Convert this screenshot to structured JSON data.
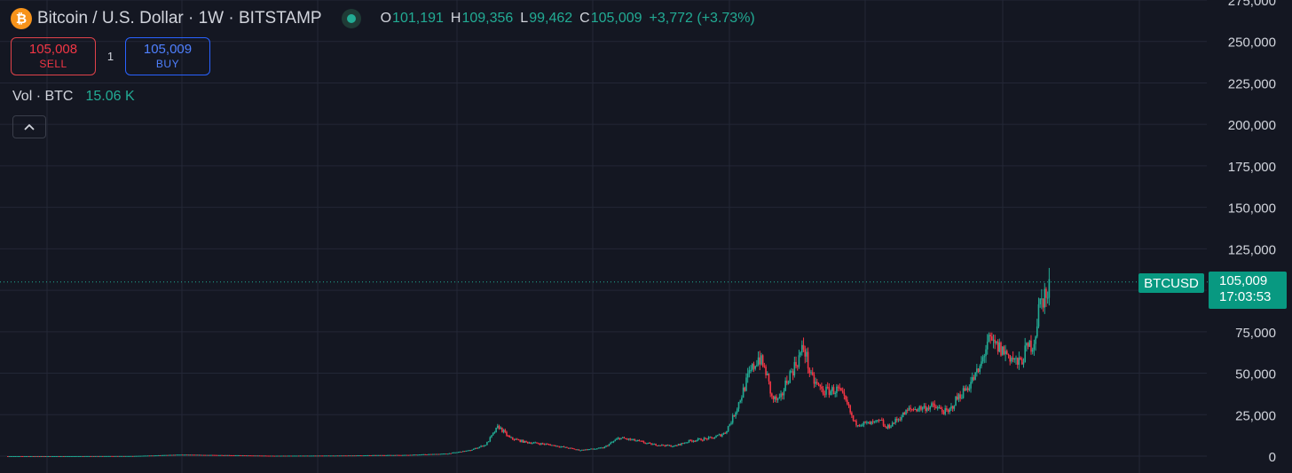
{
  "header": {
    "coin_glyph": "₿",
    "title": "Bitcoin / U.S. Dollar · 1W · BITSTAMP",
    "ohlc": [
      {
        "key": "O",
        "value": "101,191"
      },
      {
        "key": "H",
        "value": "109,356"
      },
      {
        "key": "L",
        "value": "99,462"
      },
      {
        "key": "C",
        "value": "105,009"
      }
    ],
    "change": "+3,772 (+3.73%)"
  },
  "trade": {
    "sell_price": "105,008",
    "sell_label": "SELL",
    "quantity": "1",
    "buy_price": "105,009",
    "buy_label": "BUY"
  },
  "volume": {
    "label": "Vol · BTC",
    "value": "15.06 K"
  },
  "price_tags": {
    "symbol": "BTCUSD",
    "last_price": "105,009",
    "countdown": "17:03:53"
  },
  "colors": {
    "background": "#141722",
    "grid": "#232736",
    "up": "#22ab94",
    "down": "#f23645",
    "accent_buy": "#2962ff",
    "bitcoin": "#f7931a"
  },
  "chart_data": {
    "type": "candlestick",
    "symbol": "BTCUSD",
    "interval": "1W",
    "ylim": [
      0,
      275000
    ],
    "y_ticks": [
      0,
      25000,
      50000,
      75000,
      100000,
      125000,
      150000,
      175000,
      200000,
      225000,
      250000,
      275000
    ],
    "y_tick_labels": [
      "0",
      "25,000",
      "50,000",
      "75,000",
      "",
      "125,000",
      "150,000",
      "175,000",
      "200,000",
      "225,000",
      "250,000",
      "275,000"
    ],
    "grid": true,
    "last_price": 105009,
    "x_range": [
      2011.6,
      2027.0
    ],
    "close_path": [
      [
        2011.7,
        5
      ],
      [
        2012.5,
        10
      ],
      [
        2013.3,
        100
      ],
      [
        2013.9,
        900
      ],
      [
        2014.5,
        600
      ],
      [
        2015.1,
        250
      ],
      [
        2016.0,
        400
      ],
      [
        2016.8,
        750
      ],
      [
        2017.3,
        1500
      ],
      [
        2017.6,
        3500
      ],
      [
        2017.8,
        7000
      ],
      [
        2017.96,
        18000
      ],
      [
        2018.1,
        11000
      ],
      [
        2018.3,
        8500
      ],
      [
        2018.6,
        7000
      ],
      [
        2018.9,
        4500
      ],
      [
        2019.0,
        3600
      ],
      [
        2019.3,
        5000
      ],
      [
        2019.5,
        11000
      ],
      [
        2019.7,
        9500
      ],
      [
        2019.9,
        7200
      ],
      [
        2020.2,
        6000
      ],
      [
        2020.4,
        9200
      ],
      [
        2020.7,
        11000
      ],
      [
        2020.85,
        14000
      ],
      [
        2020.95,
        23000
      ],
      [
        2021.05,
        35000
      ],
      [
        2021.15,
        48000
      ],
      [
        2021.28,
        60000
      ],
      [
        2021.38,
        50000
      ],
      [
        2021.45,
        35000
      ],
      [
        2021.55,
        33000
      ],
      [
        2021.65,
        47000
      ],
      [
        2021.75,
        55000
      ],
      [
        2021.86,
        66000
      ],
      [
        2021.95,
        47000
      ],
      [
        2022.1,
        39000
      ],
      [
        2022.3,
        40000
      ],
      [
        2022.42,
        30000
      ],
      [
        2022.5,
        20000
      ],
      [
        2022.7,
        19500
      ],
      [
        2022.85,
        21000
      ],
      [
        2022.9,
        16500
      ],
      [
        2023.05,
        22000
      ],
      [
        2023.2,
        28000
      ],
      [
        2023.5,
        30000
      ],
      [
        2023.7,
        26000
      ],
      [
        2023.8,
        34000
      ],
      [
        2023.95,
        42000
      ],
      [
        2024.1,
        52000
      ],
      [
        2024.2,
        69000
      ],
      [
        2024.35,
        65000
      ],
      [
        2024.5,
        60000
      ],
      [
        2024.6,
        55000
      ],
      [
        2024.7,
        64000
      ],
      [
        2024.8,
        70000
      ],
      [
        2024.86,
        90000
      ],
      [
        2024.93,
        98000
      ],
      [
        2024.97,
        94000
      ],
      [
        2025.0,
        105009
      ]
    ]
  }
}
